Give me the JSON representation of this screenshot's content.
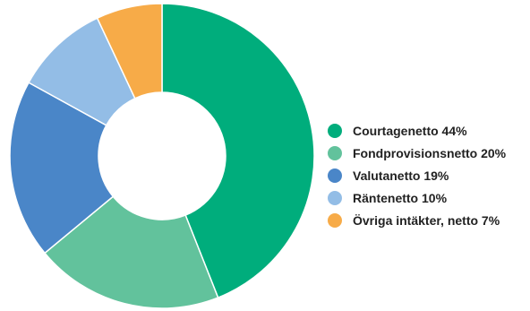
{
  "chart_data": {
    "type": "pie",
    "donut": true,
    "categories": [
      "Courtagenetto",
      "Fondprovisionsnetto",
      "Valutanetto",
      "Räntenetto",
      "Övriga intäkter, netto"
    ],
    "values": [
      44,
      20,
      19,
      10,
      7
    ],
    "unit": "%",
    "legend": {
      "position": "right",
      "entries": [
        {
          "label": "Courtagenetto 44%",
          "color": "#00ad7c"
        },
        {
          "label": "Fondprovisionsnetto 20%",
          "color": "#62c29c"
        },
        {
          "label": "Valutanetto 19%",
          "color": "#4a86c8"
        },
        {
          "label": "Räntenetto 10%",
          "color": "#93bde6"
        },
        {
          "label": "Övriga intäkter, netto 7%",
          "color": "#f7ab48"
        }
      ]
    },
    "colors": [
      "#00ad7c",
      "#62c29c",
      "#4a86c8",
      "#93bde6",
      "#f7ab48"
    ],
    "start_angle": "12 o'clock",
    "direction": "clockwise",
    "title": ""
  }
}
